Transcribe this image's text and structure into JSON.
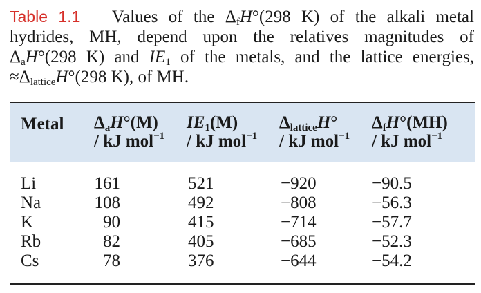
{
  "caption": {
    "label": "Table 1.1",
    "line1_text": "Values of the Δ",
    "line1_sub": "f",
    "line1_H": "H",
    "line1_rest": "°(298 K) of the alkali metal",
    "line2": "hydrides, MH, depend upon the relatives magnitudes of",
    "line3_delta": "Δ",
    "line3_sub": "a",
    "line3_H": "H",
    "line3_mid": "°(298 K) and ",
    "line3_IE": "IE",
    "line3_IEsub": "1",
    "line3_rest": " of the metals, and the lattice energies,",
    "line4_pre": "≈Δ",
    "line4_sub": "lattice",
    "line4_H": "H",
    "line4_rest": "°(298 K), of MH."
  },
  "table": {
    "headers": {
      "metal": "Metal",
      "col1_pre": "Δ",
      "col1_sub": "a",
      "col1_H": "H",
      "col1_post": "°(M)",
      "col2_IE": "IE",
      "col2_sub": "1",
      "col2_post": "(M)",
      "col3_pre": "Δ",
      "col3_sub": "lattice",
      "col3_H": "H",
      "col3_post": "°",
      "col4_pre": "Δ",
      "col4_sub": "f",
      "col4_H": "H",
      "col4_post": "°(MH)",
      "unit_main": "/ kJ mol",
      "unit_exp": "−1"
    },
    "rows": [
      {
        "metal": "Li",
        "dah": "161",
        "ie": "521",
        "lattice": "−920",
        "dfh": "−90.5"
      },
      {
        "metal": "Na",
        "dah": "108",
        "ie": "492",
        "lattice": "−808",
        "dfh": "−56.3"
      },
      {
        "metal": "K",
        "dah": "90",
        "ie": "415",
        "lattice": "−714",
        "dfh": "−57.7"
      },
      {
        "metal": "Rb",
        "dah": "82",
        "ie": "405",
        "lattice": "−685",
        "dfh": "−52.3"
      },
      {
        "metal": "Cs",
        "dah": "78",
        "ie": "376",
        "lattice": "−644",
        "dfh": "−54.2"
      }
    ]
  },
  "colors": {
    "label_red": "#d6302a",
    "header_band": "#d9e5f2",
    "rule": "#222222"
  }
}
